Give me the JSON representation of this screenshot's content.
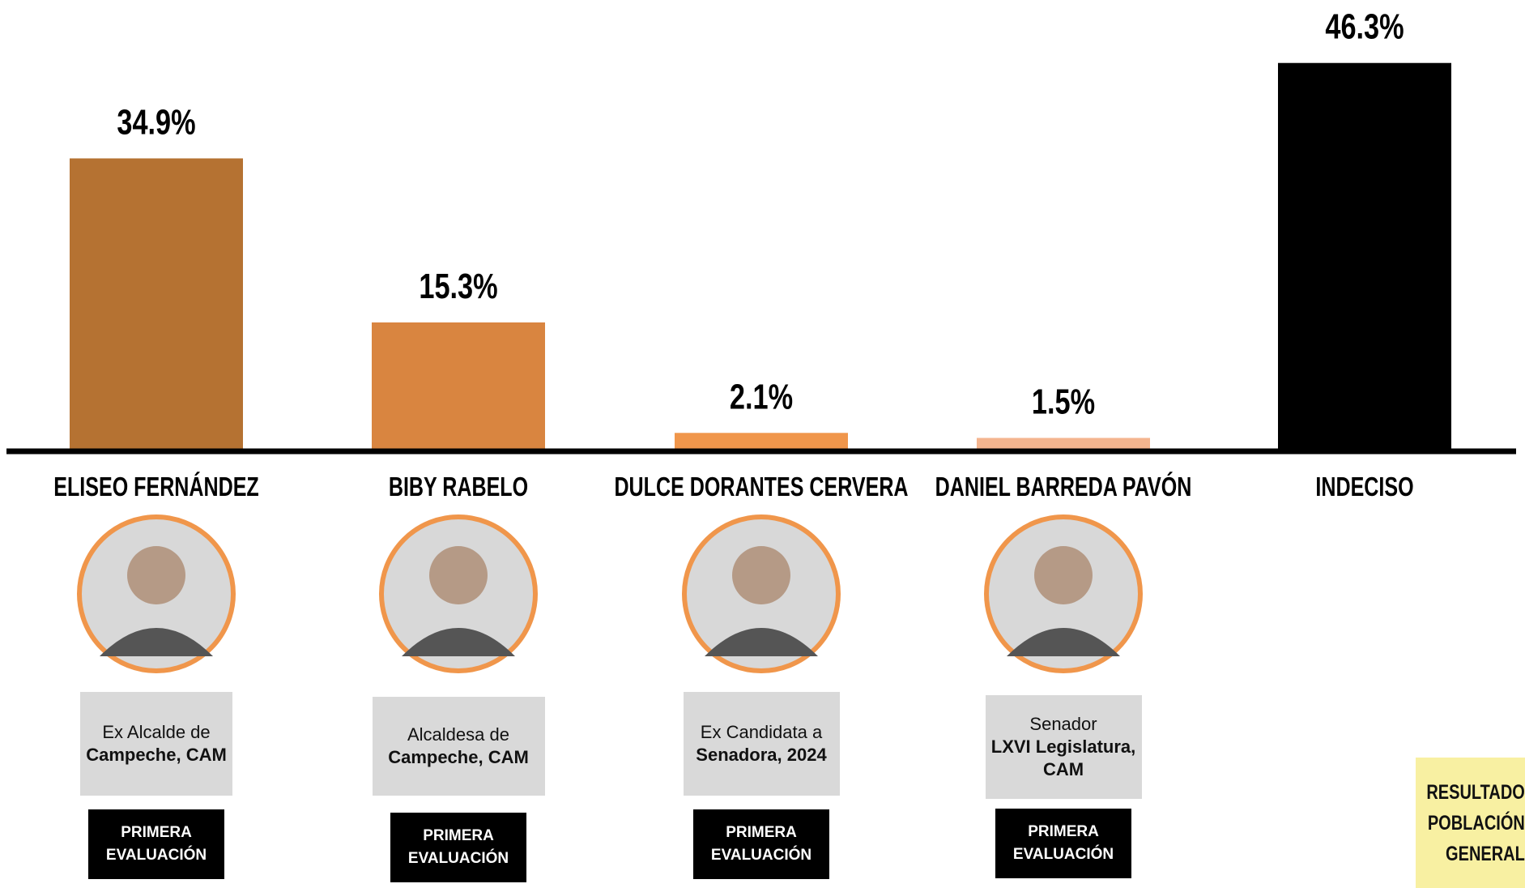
{
  "chart_data": {
    "type": "bar",
    "categories": [
      "ELISEO FERNÁNDEZ",
      "BIBY RABELO",
      "DULCE DORANTES CERVERA",
      "DANIEL BARREDA PAVÓN",
      "INDECISO"
    ],
    "values": [
      34.9,
      15.3,
      2.1,
      1.5,
      46.3
    ],
    "value_labels": [
      "34.9%",
      "15.3%",
      "2.1%",
      "1.5%",
      "46.3%"
    ],
    "colors": [
      "#b57232",
      "#d98540",
      "#f0964b",
      "#f4b58f",
      "#000000"
    ],
    "descriptions": [
      {
        "normal": "Ex Alcalde de",
        "bold": "Campeche, CAM"
      },
      {
        "normal": "Alcaldesa de",
        "bold": "Campeche, CAM"
      },
      {
        "normal": "Ex Candidata a",
        "bold": "Senadora, 2024"
      },
      {
        "normal": "Senador",
        "bold": "LXVI Legislatura, CAM"
      },
      null
    ],
    "badges": [
      "PRIMERA EVALUACIÓN",
      "PRIMERA EVALUACIÓN",
      "PRIMERA EVALUACIÓN",
      "PRIMERA EVALUACIÓN",
      null
    ],
    "note": "RESULTADO POBLACIÓN GENERAL"
  }
}
